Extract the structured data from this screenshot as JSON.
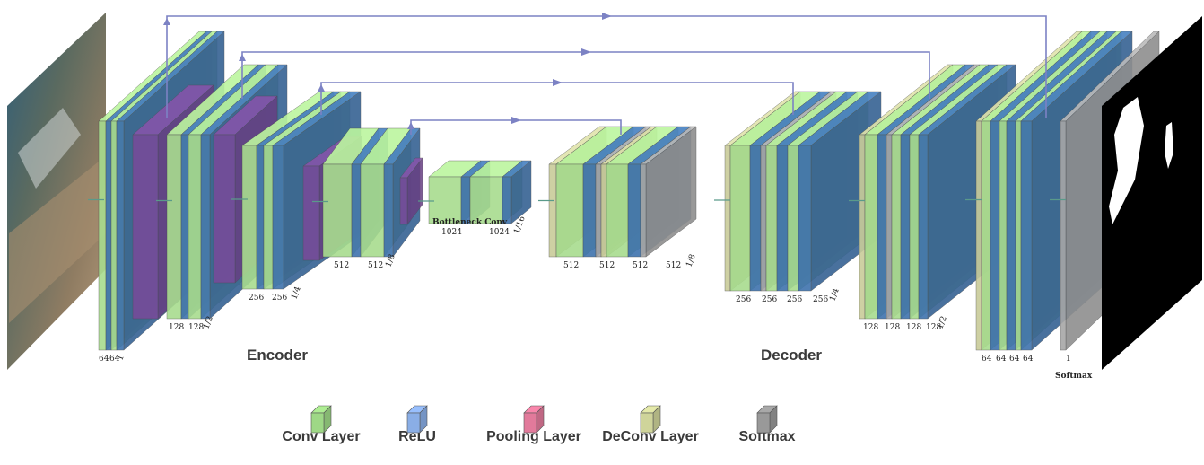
{
  "sections": {
    "encoder": "Encoder",
    "decoder": "Decoder"
  },
  "captions": {
    "bottleneck": "Bottleneck Conv",
    "softmax": "Softmax"
  },
  "legend": [
    {
      "label": "Conv Layer",
      "color": "#9ed886"
    },
    {
      "label": "ReLU",
      "color": "#8aaee6"
    },
    {
      "label": "Pooling Layer",
      "color": "#e27a9b"
    },
    {
      "label": "DeConv Layer",
      "color": "#cfd49a"
    },
    {
      "label": "Softmax",
      "color": "#999999"
    }
  ],
  "colors": {
    "conv": "#a8dc8e",
    "relu": "#3f73ad",
    "pool": "#7a4a9a",
    "deconv": "#c9cc9a",
    "softmax": "#a7a7a7",
    "skip": "#7c82c4"
  },
  "blocks": [
    {
      "name": "encoder-stage-1",
      "channel_labels": [
        "64",
        "64",
        "1"
      ]
    },
    {
      "name": "encoder-stage-2",
      "channel_labels": [
        "128",
        "128",
        "1/2"
      ]
    },
    {
      "name": "encoder-stage-3",
      "channel_labels": [
        "256",
        "256",
        "1/4"
      ]
    },
    {
      "name": "encoder-stage-4",
      "channel_labels": [
        "512",
        "512",
        "1/8"
      ]
    },
    {
      "name": "bottleneck",
      "channel_labels": [
        "1024",
        "1024",
        "1/16"
      ]
    },
    {
      "name": "decoder-stage-4",
      "channel_labels": [
        "512",
        "512",
        "512",
        "512",
        "1/8"
      ]
    },
    {
      "name": "decoder-stage-3",
      "channel_labels": [
        "256",
        "256",
        "256",
        "256",
        "1/4"
      ]
    },
    {
      "name": "decoder-stage-2",
      "channel_labels": [
        "128",
        "128",
        "128",
        "128",
        "1/2"
      ]
    },
    {
      "name": "decoder-stage-1",
      "channel_labels": [
        "64",
        "64",
        "64",
        "64"
      ]
    },
    {
      "name": "softmax-stage",
      "channel_labels": [
        "1"
      ]
    }
  ],
  "images": {
    "input": "underwater-input-image",
    "output": "segmentation-mask-output"
  }
}
